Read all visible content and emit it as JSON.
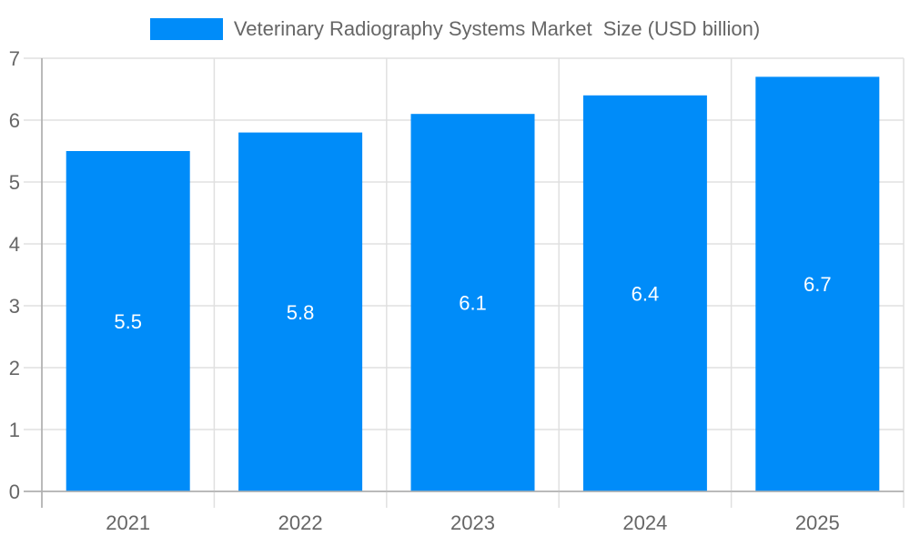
{
  "chart_data": {
    "type": "bar",
    "title": "",
    "categories": [
      "2021",
      "2022",
      "2023",
      "2024",
      "2025"
    ],
    "series": [
      {
        "name": "Veterinary Radiography Systems Market  Size (USD billion)",
        "values": [
          5.5,
          5.8,
          6.1,
          6.4,
          6.7
        ],
        "color": "#008cf9"
      }
    ],
    "data_labels": [
      "5.5",
      "5.8",
      "6.1",
      "6.4",
      "6.7"
    ],
    "xlabel": "",
    "ylabel": "",
    "ylim": [
      0,
      7
    ],
    "yticks": [
      "0",
      "1",
      "2",
      "3",
      "4",
      "5",
      "6",
      "7"
    ],
    "grid": true,
    "legend_position": "top"
  },
  "legend": {
    "label": "Veterinary Radiography Systems Market  Size (USD billion)",
    "color": "#008cf9"
  }
}
